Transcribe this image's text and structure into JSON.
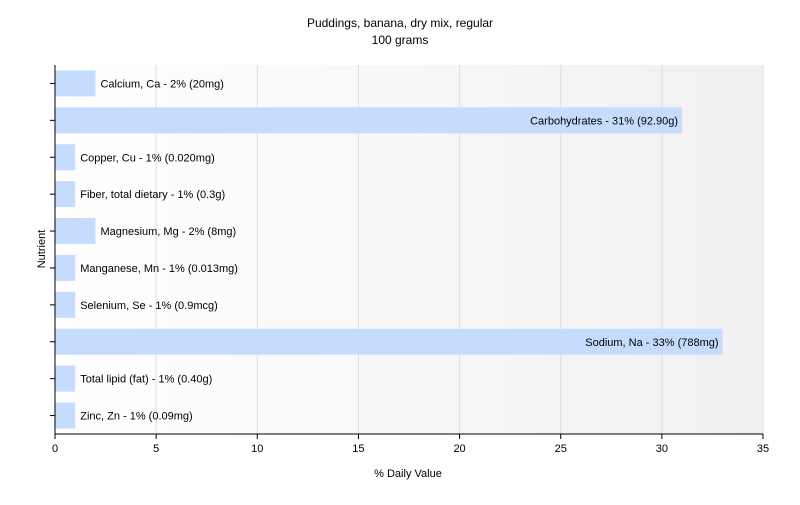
{
  "chart_data": {
    "type": "bar",
    "orientation": "horizontal",
    "title": "Puddings, banana, dry mix, regular",
    "subtitle": "100 grams",
    "xlabel": "% Daily Value",
    "ylabel": "Nutrient",
    "xlim": [
      0,
      35
    ],
    "xticks": [
      "0",
      "5",
      "10",
      "15",
      "20",
      "25",
      "30",
      "35"
    ],
    "grid": true,
    "bar_color": "#c6dcff",
    "categories": [
      "Calcium, Ca",
      "Carbohydrates",
      "Copper, Cu",
      "Fiber, total dietary",
      "Magnesium, Mg",
      "Manganese, Mn",
      "Selenium, Se",
      "Sodium, Na",
      "Total lipid (fat)",
      "Zinc, Zn"
    ],
    "values": [
      2,
      31,
      1,
      1,
      2,
      1,
      1,
      33,
      1,
      1
    ],
    "labels": [
      "Calcium, Ca - 2% (20mg)",
      "Carbohydrates - 31% (92.90g)",
      "Copper, Cu - 1% (0.020mg)",
      "Fiber, total dietary - 1% (0.3g)",
      "Magnesium, Mg - 2% (8mg)",
      "Manganese, Mn - 1% (0.013mg)",
      "Selenium, Se - 1% (0.9mcg)",
      "Sodium, Na - 33% (788mg)",
      "Total lipid (fat) - 1% (0.40g)",
      "Zinc, Zn - 1% (0.09mg)"
    ]
  }
}
